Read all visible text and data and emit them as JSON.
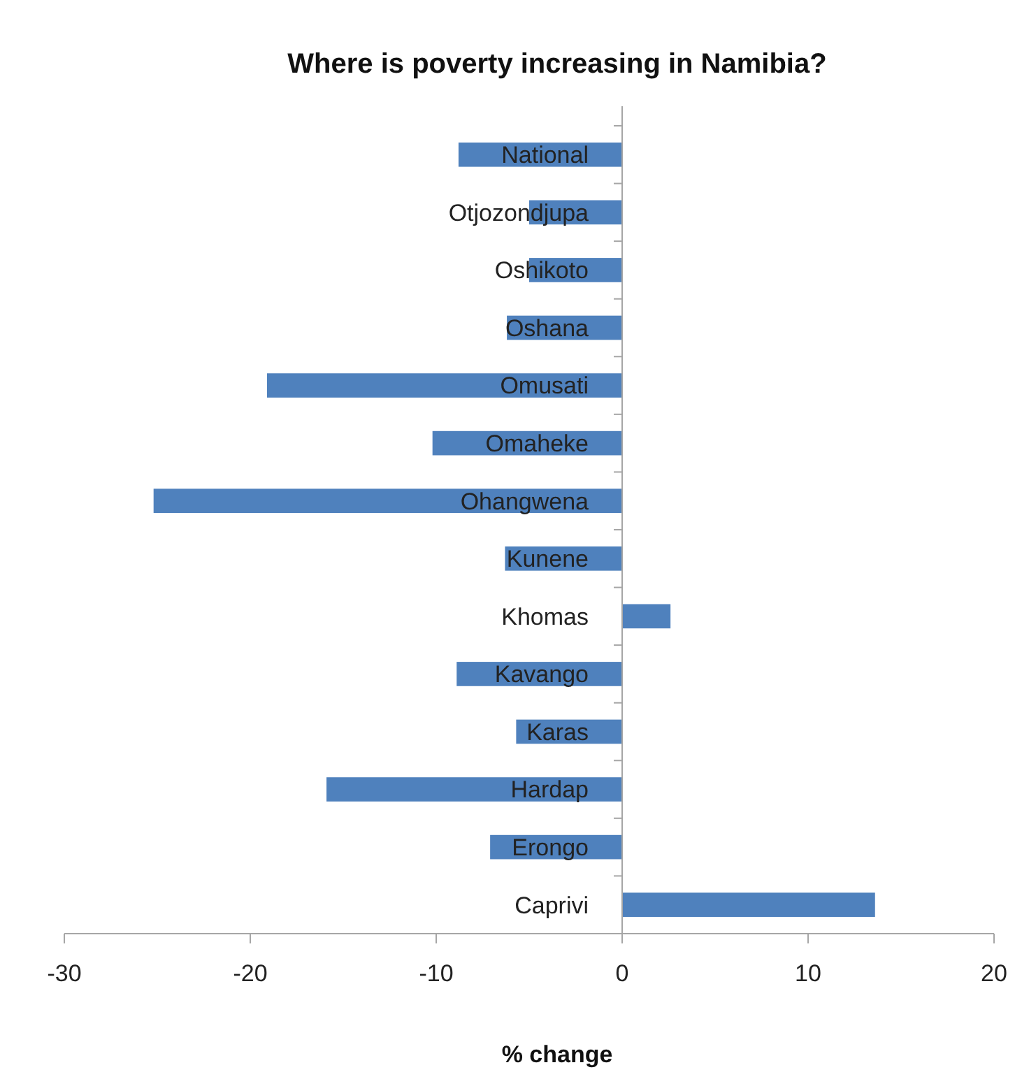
{
  "chart_data": {
    "type": "bar",
    "orientation": "horizontal",
    "title": "Where is poverty increasing in Namibia?",
    "xlabel": "% change",
    "categories": [
      "National",
      "Otjozondjupa",
      "Oshikoto",
      "Oshana",
      "Omusati",
      "Omaheke",
      "Ohangwena",
      "Kunene",
      "Khomas",
      "Kavango",
      "Karas",
      "Hardap",
      "Erongo",
      "Caprivi"
    ],
    "values": [
      -8.8,
      -5.0,
      -5.0,
      -6.2,
      -19.1,
      -10.2,
      -25.2,
      -6.3,
      2.6,
      -8.9,
      -5.7,
      -15.9,
      -7.1,
      13.6
    ],
    "color": "#4f81bd",
    "xlim": [
      -30,
      20
    ],
    "xticks": [
      -30,
      -20,
      -10,
      0,
      10,
      20
    ]
  }
}
